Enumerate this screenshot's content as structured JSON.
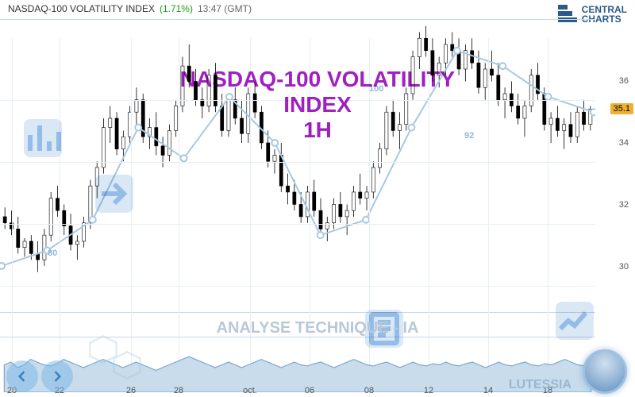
{
  "header": {
    "name": "NASDAQ-100 VOLATILITY INDEX",
    "pct": "(1.71%)",
    "time": "13:47 (GMT)"
  },
  "logo": {
    "line1": "CENTRAL",
    "line2": "CHARTS"
  },
  "title": {
    "main": "NASDAQ-100 VOLATILITY INDEX",
    "sub": "1H",
    "fontsize": 28,
    "color": "#a020c0"
  },
  "subtitle": {
    "text": "ANALYSE TECHNIQUE - IA",
    "fontsize": 20,
    "color": "#b8c8d8"
  },
  "brand": "LUTESSIA",
  "main_chart": {
    "type": "candlestick",
    "ylim": [
      28.5,
      38
    ],
    "yticks": [
      30,
      32,
      34,
      36
    ],
    "background": "#ffffff",
    "grid_color": "#e6eef6",
    "up_color": "#000000",
    "down_color": "#000000",
    "current_price": 35.1,
    "price_tag_bg": "#f0b030",
    "candles": [
      {
        "o": 31.6,
        "h": 31.9,
        "l": 31.2,
        "c": 31.4
      },
      {
        "o": 31.4,
        "h": 31.8,
        "l": 31.0,
        "c": 31.2
      },
      {
        "o": 31.2,
        "h": 31.6,
        "l": 30.4,
        "c": 30.6
      },
      {
        "o": 30.6,
        "h": 30.9,
        "l": 30.3,
        "c": 30.8
      },
      {
        "o": 30.8,
        "h": 31.0,
        "l": 30.2,
        "c": 30.4
      },
      {
        "o": 30.4,
        "h": 30.8,
        "l": 29.8,
        "c": 30.2
      },
      {
        "o": 30.2,
        "h": 31.2,
        "l": 30.0,
        "c": 31.0
      },
      {
        "o": 31.0,
        "h": 32.4,
        "l": 30.8,
        "c": 32.2
      },
      {
        "o": 32.2,
        "h": 32.6,
        "l": 31.6,
        "c": 31.8
      },
      {
        "o": 31.8,
        "h": 32.0,
        "l": 31.0,
        "c": 31.3
      },
      {
        "o": 31.3,
        "h": 31.7,
        "l": 30.5,
        "c": 30.7
      },
      {
        "o": 30.7,
        "h": 31.0,
        "l": 30.2,
        "c": 30.8
      },
      {
        "o": 30.8,
        "h": 31.6,
        "l": 30.6,
        "c": 31.4
      },
      {
        "o": 31.4,
        "h": 32.8,
        "l": 31.2,
        "c": 32.6
      },
      {
        "o": 32.6,
        "h": 33.4,
        "l": 32.2,
        "c": 33.2
      },
      {
        "o": 33.2,
        "h": 34.8,
        "l": 33.0,
        "c": 34.5
      },
      {
        "o": 34.5,
        "h": 35.2,
        "l": 34.0,
        "c": 34.8
      },
      {
        "o": 34.8,
        "h": 35.0,
        "l": 33.6,
        "c": 33.8
      },
      {
        "o": 33.8,
        "h": 34.4,
        "l": 33.4,
        "c": 34.2
      },
      {
        "o": 34.2,
        "h": 35.2,
        "l": 34.0,
        "c": 35.0
      },
      {
        "o": 35.0,
        "h": 35.8,
        "l": 34.6,
        "c": 35.4
      },
      {
        "o": 35.4,
        "h": 35.6,
        "l": 34.0,
        "c": 34.2
      },
      {
        "o": 34.2,
        "h": 34.8,
        "l": 33.8,
        "c": 34.5
      },
      {
        "o": 34.5,
        "h": 35.0,
        "l": 33.6,
        "c": 33.9
      },
      {
        "o": 33.9,
        "h": 34.2,
        "l": 33.2,
        "c": 33.6
      },
      {
        "o": 33.6,
        "h": 34.6,
        "l": 33.4,
        "c": 34.4
      },
      {
        "o": 34.4,
        "h": 35.4,
        "l": 34.2,
        "c": 35.2
      },
      {
        "o": 35.2,
        "h": 36.8,
        "l": 35.0,
        "c": 36.5
      },
      {
        "o": 36.5,
        "h": 37.2,
        "l": 35.8,
        "c": 36.0
      },
      {
        "o": 36.0,
        "h": 36.4,
        "l": 35.2,
        "c": 35.4
      },
      {
        "o": 35.4,
        "h": 35.8,
        "l": 34.8,
        "c": 35.2
      },
      {
        "o": 35.2,
        "h": 36.4,
        "l": 35.0,
        "c": 36.2
      },
      {
        "o": 36.2,
        "h": 36.6,
        "l": 35.0,
        "c": 35.2
      },
      {
        "o": 35.2,
        "h": 35.6,
        "l": 34.2,
        "c": 34.4
      },
      {
        "o": 34.4,
        "h": 35.6,
        "l": 34.2,
        "c": 35.4
      },
      {
        "o": 35.4,
        "h": 35.8,
        "l": 34.6,
        "c": 34.8
      },
      {
        "o": 34.8,
        "h": 35.4,
        "l": 34.0,
        "c": 34.3
      },
      {
        "o": 34.3,
        "h": 35.8,
        "l": 34.0,
        "c": 35.6
      },
      {
        "o": 35.6,
        "h": 36.0,
        "l": 34.8,
        "c": 35.0
      },
      {
        "o": 35.0,
        "h": 35.2,
        "l": 33.8,
        "c": 34.0
      },
      {
        "o": 34.0,
        "h": 34.4,
        "l": 33.2,
        "c": 33.4
      },
      {
        "o": 33.4,
        "h": 33.8,
        "l": 33.0,
        "c": 33.6
      },
      {
        "o": 33.6,
        "h": 34.0,
        "l": 32.4,
        "c": 32.6
      },
      {
        "o": 32.6,
        "h": 33.0,
        "l": 32.0,
        "c": 32.4
      },
      {
        "o": 32.4,
        "h": 32.8,
        "l": 31.8,
        "c": 32.0
      },
      {
        "o": 32.0,
        "h": 32.4,
        "l": 31.4,
        "c": 31.6
      },
      {
        "o": 31.6,
        "h": 32.6,
        "l": 31.4,
        "c": 32.4
      },
      {
        "o": 32.4,
        "h": 32.8,
        "l": 31.6,
        "c": 31.8
      },
      {
        "o": 31.8,
        "h": 32.2,
        "l": 31.0,
        "c": 31.2
      },
      {
        "o": 31.2,
        "h": 31.6,
        "l": 30.8,
        "c": 31.4
      },
      {
        "o": 31.4,
        "h": 32.2,
        "l": 31.2,
        "c": 32.0
      },
      {
        "o": 32.0,
        "h": 32.4,
        "l": 31.4,
        "c": 31.6
      },
      {
        "o": 31.6,
        "h": 32.0,
        "l": 31.0,
        "c": 31.8
      },
      {
        "o": 31.8,
        "h": 32.6,
        "l": 31.6,
        "c": 32.4
      },
      {
        "o": 32.4,
        "h": 33.0,
        "l": 32.0,
        "c": 32.2
      },
      {
        "o": 32.2,
        "h": 32.6,
        "l": 31.8,
        "c": 32.4
      },
      {
        "o": 32.4,
        "h": 33.4,
        "l": 32.2,
        "c": 33.2
      },
      {
        "o": 33.2,
        "h": 34.0,
        "l": 33.0,
        "c": 33.8
      },
      {
        "o": 33.8,
        "h": 35.2,
        "l": 33.6,
        "c": 35.0
      },
      {
        "o": 35.0,
        "h": 35.4,
        "l": 34.2,
        "c": 34.4
      },
      {
        "o": 34.4,
        "h": 35.0,
        "l": 33.8,
        "c": 34.6
      },
      {
        "o": 34.6,
        "h": 35.8,
        "l": 34.4,
        "c": 35.6
      },
      {
        "o": 35.6,
        "h": 37.0,
        "l": 35.4,
        "c": 36.8
      },
      {
        "o": 36.8,
        "h": 37.6,
        "l": 36.4,
        "c": 37.4
      },
      {
        "o": 37.4,
        "h": 37.8,
        "l": 36.8,
        "c": 37.0
      },
      {
        "o": 37.0,
        "h": 37.4,
        "l": 36.0,
        "c": 36.2
      },
      {
        "o": 36.2,
        "h": 36.8,
        "l": 35.8,
        "c": 36.6
      },
      {
        "o": 36.6,
        "h": 37.4,
        "l": 36.2,
        "c": 37.2
      },
      {
        "o": 37.2,
        "h": 37.6,
        "l": 36.8,
        "c": 37.0
      },
      {
        "o": 37.0,
        "h": 37.4,
        "l": 36.2,
        "c": 36.4
      },
      {
        "o": 36.4,
        "h": 37.2,
        "l": 36.0,
        "c": 37.0
      },
      {
        "o": 37.0,
        "h": 37.4,
        "l": 36.4,
        "c": 36.6
      },
      {
        "o": 36.6,
        "h": 37.0,
        "l": 35.6,
        "c": 35.8
      },
      {
        "o": 35.8,
        "h": 36.6,
        "l": 35.4,
        "c": 36.4
      },
      {
        "o": 36.4,
        "h": 37.0,
        "l": 36.0,
        "c": 36.2
      },
      {
        "o": 36.2,
        "h": 36.6,
        "l": 35.2,
        "c": 35.4
      },
      {
        "o": 35.4,
        "h": 35.8,
        "l": 34.8,
        "c": 35.6
      },
      {
        "o": 35.6,
        "h": 36.0,
        "l": 35.0,
        "c": 35.2
      },
      {
        "o": 35.2,
        "h": 35.6,
        "l": 34.6,
        "c": 34.8
      },
      {
        "o": 34.8,
        "h": 35.4,
        "l": 34.2,
        "c": 35.2
      },
      {
        "o": 35.2,
        "h": 36.4,
        "l": 35.0,
        "c": 36.2
      },
      {
        "o": 36.2,
        "h": 36.6,
        "l": 35.4,
        "c": 35.6
      },
      {
        "o": 35.6,
        "h": 35.8,
        "l": 34.4,
        "c": 34.6
      },
      {
        "o": 34.6,
        "h": 35.0,
        "l": 34.0,
        "c": 34.8
      },
      {
        "o": 34.8,
        "h": 35.2,
        "l": 34.2,
        "c": 34.4
      },
      {
        "o": 34.4,
        "h": 34.8,
        "l": 33.8,
        "c": 34.6
      },
      {
        "o": 34.6,
        "h": 35.0,
        "l": 34.0,
        "c": 34.2
      },
      {
        "o": 34.2,
        "h": 35.2,
        "l": 34.0,
        "c": 35.0
      },
      {
        "o": 35.0,
        "h": 35.4,
        "l": 34.4,
        "c": 34.6
      },
      {
        "o": 34.6,
        "h": 35.2,
        "l": 34.4,
        "c": 35.1
      }
    ],
    "overlay_line": {
      "color": "#a8c8e0",
      "points": [
        30.0,
        30.5,
        31.5,
        34.5,
        33.5,
        35.5,
        34.0,
        31.0,
        31.5,
        34.5,
        37.0,
        36.5,
        35.5,
        35.0
      ],
      "labels": [
        {
          "x": 0.08,
          "y": 31.2,
          "text": "80"
        },
        {
          "x": 0.62,
          "y": 36.5,
          "text": "100"
        },
        {
          "x": 0.78,
          "y": 35.0,
          "text": "92"
        }
      ]
    }
  },
  "sub_chart": {
    "type": "area",
    "fill_color": "#c8dcec",
    "line_color": "#7aa8d0",
    "values": [
      0.5,
      0.55,
      0.45,
      0.5,
      0.6,
      0.55,
      0.5,
      0.48,
      0.52,
      0.6,
      0.55,
      0.5,
      0.45,
      0.5,
      0.55,
      0.6,
      0.55,
      0.5,
      0.45,
      0.5,
      0.55,
      0.5,
      0.45,
      0.4,
      0.45,
      0.5,
      0.55,
      0.6,
      0.65,
      0.6,
      0.55,
      0.5,
      0.45,
      0.5,
      0.55,
      0.5,
      0.45,
      0.5,
      0.55,
      0.6,
      0.55,
      0.5,
      0.45,
      0.5,
      0.55,
      0.5,
      0.48,
      0.52,
      0.55,
      0.5,
      0.45,
      0.5,
      0.55,
      0.6,
      0.55,
      0.5,
      0.48,
      0.52,
      0.55,
      0.5,
      0.45,
      0.5,
      0.55,
      0.5,
      0.48,
      0.52,
      0.5,
      0.55,
      0.5,
      0.48,
      0.52,
      0.55,
      0.5,
      0.45,
      0.5,
      0.55,
      0.5,
      0.48,
      0.52,
      0.55,
      0.5,
      0.48,
      0.52,
      0.5,
      0.55,
      0.6,
      0.55,
      0.5,
      0.48,
      0.52
    ]
  },
  "xaxis": {
    "ticks": [
      {
        "pos": 0.02,
        "label": "20"
      },
      {
        "pos": 0.1,
        "label": "22"
      },
      {
        "pos": 0.22,
        "label": "26"
      },
      {
        "pos": 0.3,
        "label": "28"
      },
      {
        "pos": 0.42,
        "label": "oct."
      },
      {
        "pos": 0.52,
        "label": "06"
      },
      {
        "pos": 0.62,
        "label": "08"
      },
      {
        "pos": 0.72,
        "label": "12"
      },
      {
        "pos": 0.82,
        "label": "14"
      },
      {
        "pos": 0.92,
        "label": "18"
      }
    ]
  }
}
